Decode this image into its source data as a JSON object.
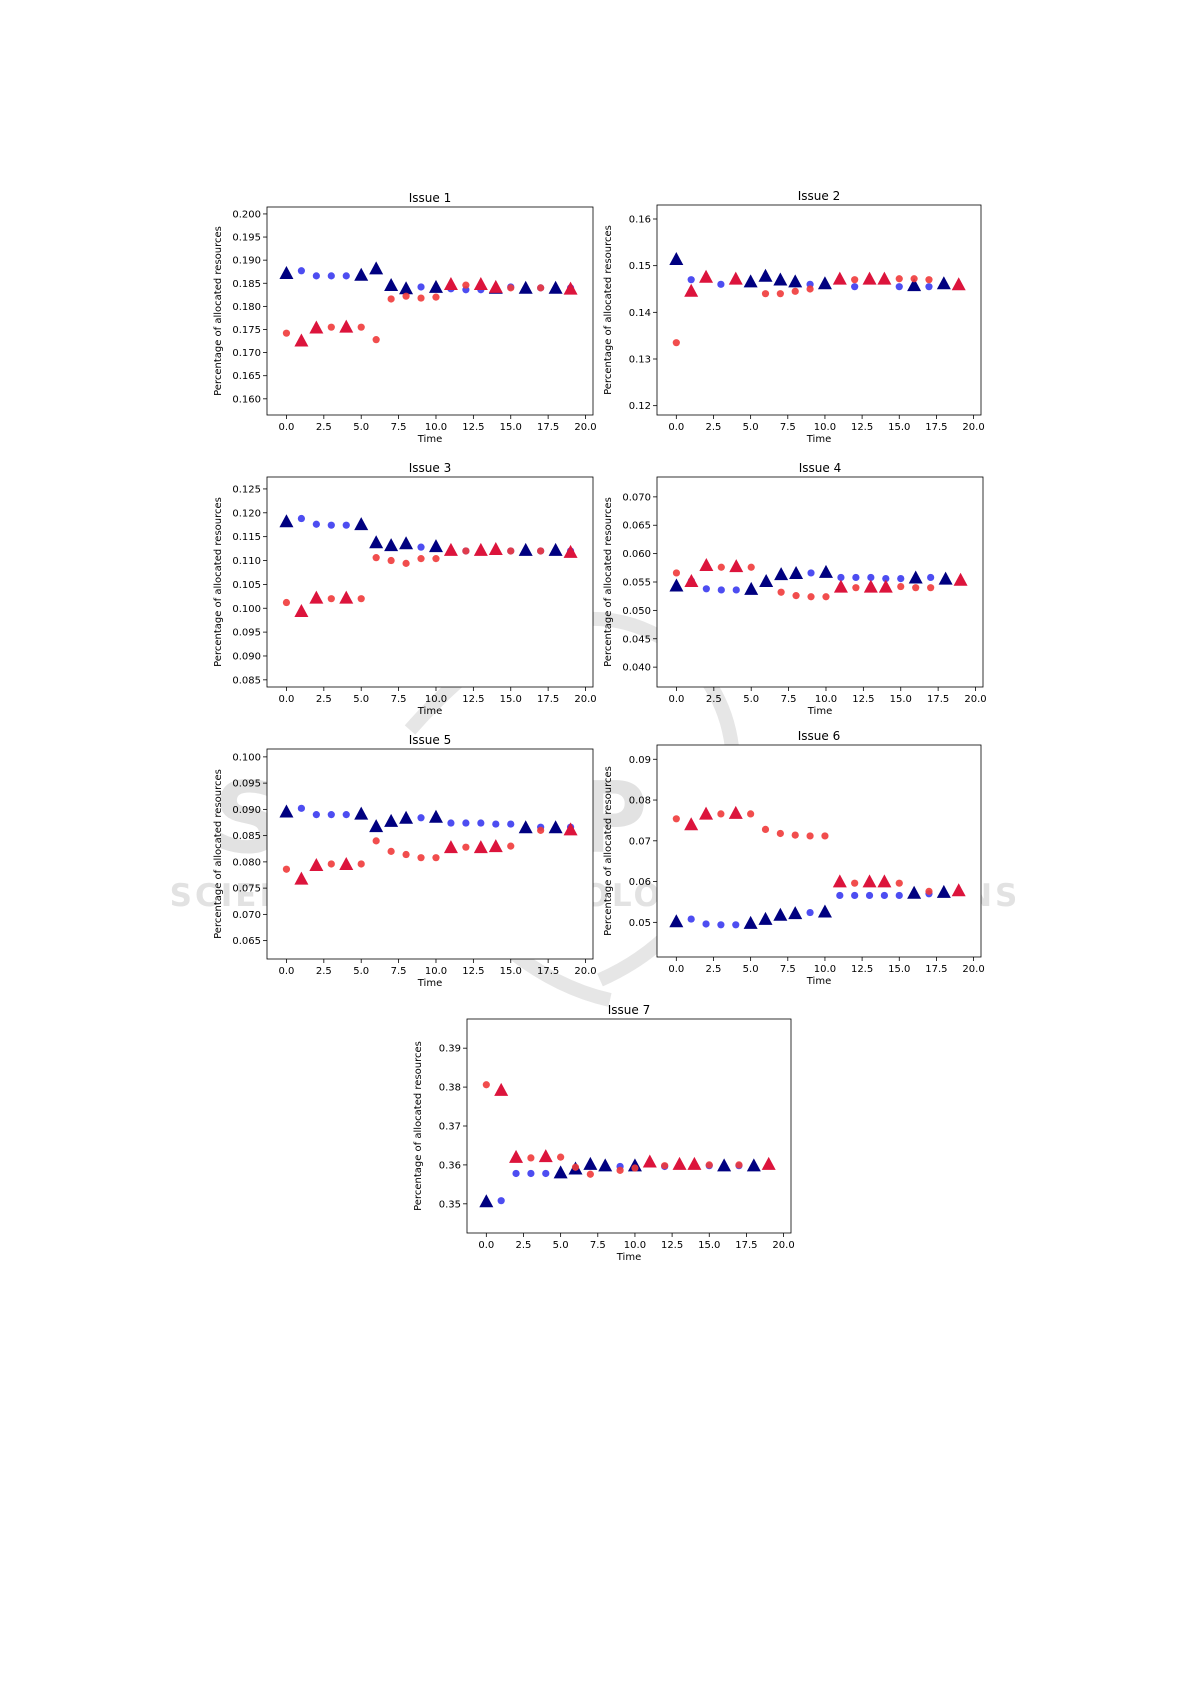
{
  "watermark": {
    "line1": "SCITEPRESS",
    "line2": "SCIENCE AND TECHNOLOGY PUBLICATIONS"
  },
  "colors": {
    "blue_circle": "#3a3af0",
    "navy_triangle": "#000080",
    "red_circle": "#f03a3a",
    "red_triangle": "#dc143c"
  },
  "chart_data": [
    {
      "type": "scatter",
      "title": "Issue 1",
      "xlabel": "Time",
      "ylabel": "Percentage of allocated resources",
      "xlim": [
        -1.3,
        20.5
      ],
      "ylim": [
        0.1565,
        0.2015
      ],
      "xticks": [
        "0.0",
        "2.5",
        "5.0",
        "7.5",
        "10.0",
        "12.5",
        "15.0",
        "17.5",
        "20.0"
      ],
      "yticks": [
        "0.160",
        "0.165",
        "0.170",
        "0.175",
        "0.180",
        "0.185",
        "0.190",
        "0.195",
        "0.200"
      ],
      "series": [
        {
          "marker": "circle",
          "color": "blue",
          "x": [
            1,
            2,
            3,
            4,
            9,
            11,
            12,
            13,
            15,
            17,
            19
          ],
          "y": [
            0.1877,
            0.1866,
            0.1866,
            0.1866,
            0.1842,
            0.1838,
            0.1836,
            0.1836,
            0.1842,
            0.184,
            0.184
          ]
        },
        {
          "marker": "triangle",
          "color": "navy",
          "x": [
            0,
            5,
            6,
            7,
            8,
            10,
            14,
            16,
            18
          ],
          "y": [
            0.187,
            0.1866,
            0.188,
            0.1844,
            0.1837,
            0.184,
            0.1838,
            0.1838,
            0.1838
          ]
        },
        {
          "marker": "circle",
          "color": "red",
          "x": [
            0,
            3,
            5,
            6,
            7,
            8,
            9,
            10,
            12,
            15,
            17
          ],
          "y": [
            0.1742,
            0.1755,
            0.1755,
            0.1728,
            0.1816,
            0.1822,
            0.1818,
            0.182,
            0.1846,
            0.184,
            0.184
          ]
        },
        {
          "marker": "triangle",
          "color": "red",
          "x": [
            1,
            2,
            4,
            11,
            13,
            14,
            19
          ],
          "y": [
            0.1724,
            0.1752,
            0.1754,
            0.1846,
            0.1846,
            0.184,
            0.1836
          ]
        }
      ]
    },
    {
      "type": "scatter",
      "title": "Issue 2",
      "xlabel": "Time",
      "ylabel": "Percentage of allocated resources",
      "xlim": [
        -1.3,
        20.5
      ],
      "ylim": [
        0.118,
        0.163
      ],
      "xticks": [
        "0.0",
        "2.5",
        "5.0",
        "7.5",
        "10.0",
        "12.5",
        "15.0",
        "17.5",
        "20.0"
      ],
      "yticks": [
        "0.12",
        "0.13",
        "0.14",
        "0.15",
        "0.16"
      ],
      "series": [
        {
          "marker": "circle",
          "color": "blue",
          "x": [
            1,
            3,
            9,
            12,
            15,
            17
          ],
          "y": [
            0.147,
            0.146,
            0.146,
            0.1455,
            0.1455,
            0.1455
          ]
        },
        {
          "marker": "triangle",
          "color": "navy",
          "x": [
            0,
            5,
            6,
            7,
            8,
            10,
            16,
            18
          ],
          "y": [
            0.1512,
            0.1464,
            0.1476,
            0.1468,
            0.1464,
            0.146,
            0.1456,
            0.146
          ]
        },
        {
          "marker": "circle",
          "color": "red",
          "x": [
            0,
            6,
            7,
            8,
            9,
            12,
            15,
            16,
            17
          ],
          "y": [
            0.1335,
            0.144,
            0.144,
            0.1445,
            0.145,
            0.147,
            0.1472,
            0.1472,
            0.147
          ]
        },
        {
          "marker": "triangle",
          "color": "red",
          "x": [
            1,
            2,
            4,
            11,
            13,
            14,
            19
          ],
          "y": [
            0.1444,
            0.1474,
            0.147,
            0.147,
            0.147,
            0.147,
            0.1458
          ]
        }
      ]
    },
    {
      "type": "scatter",
      "title": "Issue 3",
      "xlabel": "Time",
      "ylabel": "Percentage of allocated resources",
      "xlim": [
        -1.3,
        20.5
      ],
      "ylim": [
        0.0835,
        0.1275
      ],
      "xticks": [
        "0.0",
        "2.5",
        "5.0",
        "7.5",
        "10.0",
        "12.5",
        "15.0",
        "17.5",
        "20.0"
      ],
      "yticks": [
        "0.085",
        "0.090",
        "0.095",
        "0.100",
        "0.105",
        "0.110",
        "0.115",
        "0.120",
        "0.125"
      ],
      "series": [
        {
          "marker": "circle",
          "color": "blue",
          "x": [
            1,
            2,
            3,
            4,
            9,
            12,
            15,
            17,
            19
          ],
          "y": [
            0.1188,
            0.1176,
            0.1174,
            0.1174,
            0.1128,
            0.112,
            0.112,
            0.112,
            0.112
          ]
        },
        {
          "marker": "triangle",
          "color": "navy",
          "x": [
            0,
            5,
            6,
            7,
            8,
            10,
            16,
            18
          ],
          "y": [
            0.118,
            0.1174,
            0.1136,
            0.113,
            0.1134,
            0.1128,
            0.112,
            0.112
          ]
        },
        {
          "marker": "circle",
          "color": "red",
          "x": [
            0,
            3,
            5,
            6,
            7,
            8,
            9,
            10,
            12,
            15,
            17
          ],
          "y": [
            0.1012,
            0.102,
            0.102,
            0.1106,
            0.11,
            0.1094,
            0.1104,
            0.1104,
            0.112,
            0.112,
            0.112
          ]
        },
        {
          "marker": "triangle",
          "color": "red",
          "x": [
            1,
            2,
            4,
            11,
            13,
            14,
            19
          ],
          "y": [
            0.0992,
            0.102,
            0.102,
            0.112,
            0.112,
            0.1122,
            0.1116
          ]
        }
      ]
    },
    {
      "type": "scatter",
      "title": "Issue 4",
      "xlabel": "Time",
      "ylabel": "Percentage of allocated resources",
      "xlim": [
        -1.3,
        20.5
      ],
      "ylim": [
        0.0365,
        0.0735
      ],
      "xticks": [
        "0.0",
        "2.5",
        "5.0",
        "7.5",
        "10.0",
        "12.5",
        "15.0",
        "17.5",
        "20.0"
      ],
      "yticks": [
        "0.040",
        "0.045",
        "0.050",
        "0.055",
        "0.060",
        "0.065",
        "0.070"
      ],
      "series": [
        {
          "marker": "circle",
          "color": "blue",
          "x": [
            1,
            2,
            3,
            4,
            9,
            11,
            12,
            13,
            14,
            15,
            17
          ],
          "y": [
            0.0552,
            0.0538,
            0.0536,
            0.0536,
            0.0566,
            0.0558,
            0.0558,
            0.0558,
            0.0556,
            0.0556,
            0.0558
          ]
        },
        {
          "marker": "triangle",
          "color": "navy",
          "x": [
            0,
            5,
            6,
            7,
            8,
            10,
            16,
            18
          ],
          "y": [
            0.0542,
            0.0536,
            0.055,
            0.0562,
            0.0564,
            0.0566,
            0.0556,
            0.0554
          ]
        },
        {
          "marker": "circle",
          "color": "red",
          "x": [
            0,
            3,
            5,
            7,
            8,
            9,
            10,
            12,
            15,
            16,
            17
          ],
          "y": [
            0.0566,
            0.0576,
            0.0576,
            0.0532,
            0.0526,
            0.0524,
            0.0524,
            0.054,
            0.0542,
            0.054,
            0.054
          ]
        },
        {
          "marker": "triangle",
          "color": "red",
          "x": [
            1,
            2,
            4,
            11,
            13,
            14,
            19
          ],
          "y": [
            0.055,
            0.0578,
            0.0576,
            0.054,
            0.054,
            0.054,
            0.0552
          ]
        }
      ]
    },
    {
      "type": "scatter",
      "title": "Issue 5",
      "xlabel": "Time",
      "ylabel": "Percentage of allocated resources",
      "xlim": [
        -1.3,
        20.5
      ],
      "ylim": [
        0.0615,
        0.1015
      ],
      "xticks": [
        "0.0",
        "2.5",
        "5.0",
        "7.5",
        "10.0",
        "12.5",
        "15.0",
        "17.5",
        "20.0"
      ],
      "yticks": [
        "0.065",
        "0.070",
        "0.075",
        "0.080",
        "0.085",
        "0.090",
        "0.095",
        "0.100"
      ],
      "series": [
        {
          "marker": "circle",
          "color": "blue",
          "x": [
            1,
            2,
            3,
            4,
            9,
            11,
            12,
            13,
            14,
            15,
            17,
            19
          ],
          "y": [
            0.0902,
            0.089,
            0.089,
            0.089,
            0.0884,
            0.0874,
            0.0874,
            0.0874,
            0.0872,
            0.0872,
            0.0866,
            0.0866
          ]
        },
        {
          "marker": "triangle",
          "color": "navy",
          "x": [
            0,
            5,
            6,
            7,
            8,
            10,
            16,
            18
          ],
          "y": [
            0.0894,
            0.089,
            0.0866,
            0.0876,
            0.0882,
            0.0884,
            0.0864,
            0.0864
          ]
        },
        {
          "marker": "circle",
          "color": "red",
          "x": [
            0,
            3,
            5,
            6,
            7,
            8,
            9,
            10,
            12,
            15,
            17
          ],
          "y": [
            0.0786,
            0.0796,
            0.0796,
            0.084,
            0.082,
            0.0814,
            0.0808,
            0.0808,
            0.0828,
            0.083,
            0.086
          ]
        },
        {
          "marker": "triangle",
          "color": "red",
          "x": [
            1,
            2,
            4,
            11,
            13,
            14,
            19
          ],
          "y": [
            0.0766,
            0.0792,
            0.0794,
            0.0826,
            0.0826,
            0.0828,
            0.086
          ]
        }
      ]
    },
    {
      "type": "scatter",
      "title": "Issue 6",
      "xlabel": "Time",
      "ylabel": "Percentage of allocated resources",
      "xlim": [
        -1.3,
        20.5
      ],
      "ylim": [
        0.0415,
        0.0935
      ],
      "xticks": [
        "0.0",
        "2.5",
        "5.0",
        "7.5",
        "10.0",
        "12.5",
        "15.0",
        "17.5",
        "20.0"
      ],
      "yticks": [
        "0.05",
        "0.06",
        "0.07",
        "0.08",
        "0.09"
      ],
      "series": [
        {
          "marker": "circle",
          "color": "blue",
          "x": [
            1,
            2,
            3,
            4,
            9,
            11,
            12,
            13,
            14,
            15,
            17
          ],
          "y": [
            0.0508,
            0.0496,
            0.0494,
            0.0494,
            0.0524,
            0.0566,
            0.0566,
            0.0566,
            0.0566,
            0.0566,
            0.057
          ]
        },
        {
          "marker": "triangle",
          "color": "navy",
          "x": [
            0,
            5,
            6,
            7,
            8,
            10,
            16,
            18
          ],
          "y": [
            0.05,
            0.0496,
            0.0506,
            0.0516,
            0.052,
            0.0524,
            0.057,
            0.0572
          ]
        },
        {
          "marker": "circle",
          "color": "red",
          "x": [
            0,
            3,
            5,
            6,
            7,
            8,
            9,
            10,
            12,
            15,
            17
          ],
          "y": [
            0.0754,
            0.0766,
            0.0766,
            0.0728,
            0.0718,
            0.0714,
            0.0712,
            0.0712,
            0.0596,
            0.0596,
            0.0576
          ]
        },
        {
          "marker": "triangle",
          "color": "red",
          "x": [
            1,
            2,
            4,
            11,
            13,
            14,
            19
          ],
          "y": [
            0.0738,
            0.0764,
            0.0766,
            0.0598,
            0.0598,
            0.0598,
            0.0576
          ]
        }
      ]
    },
    {
      "type": "scatter",
      "title": "Issue 7",
      "xlabel": "Time",
      "ylabel": "Percentage of allocated resources",
      "xlim": [
        -1.3,
        20.5
      ],
      "ylim": [
        0.3425,
        0.3975
      ],
      "xticks": [
        "0.0",
        "2.5",
        "5.0",
        "7.5",
        "10.0",
        "12.5",
        "15.0",
        "17.5",
        "20.0"
      ],
      "yticks": [
        "0.35",
        "0.36",
        "0.37",
        "0.38",
        "0.39"
      ],
      "series": [
        {
          "marker": "circle",
          "color": "blue",
          "x": [
            1,
            2,
            3,
            4,
            9,
            12,
            15,
            17
          ],
          "y": [
            0.3508,
            0.3578,
            0.3578,
            0.3578,
            0.3596,
            0.3596,
            0.3598,
            0.3598
          ]
        },
        {
          "marker": "triangle",
          "color": "navy",
          "x": [
            0,
            5,
            6,
            7,
            8,
            10,
            16,
            18
          ],
          "y": [
            0.3504,
            0.3578,
            0.3588,
            0.36,
            0.3596,
            0.3596,
            0.3596,
            0.3596
          ]
        },
        {
          "marker": "circle",
          "color": "red",
          "x": [
            0,
            3,
            5,
            6,
            7,
            9,
            10,
            12,
            15,
            17
          ],
          "y": [
            0.3806,
            0.3618,
            0.362,
            0.3594,
            0.3576,
            0.3586,
            0.3592,
            0.3598,
            0.36,
            0.36
          ]
        },
        {
          "marker": "triangle",
          "color": "red",
          "x": [
            1,
            2,
            4,
            11,
            13,
            14,
            19
          ],
          "y": [
            0.379,
            0.3618,
            0.362,
            0.3606,
            0.36,
            0.36,
            0.36
          ]
        }
      ]
    }
  ]
}
